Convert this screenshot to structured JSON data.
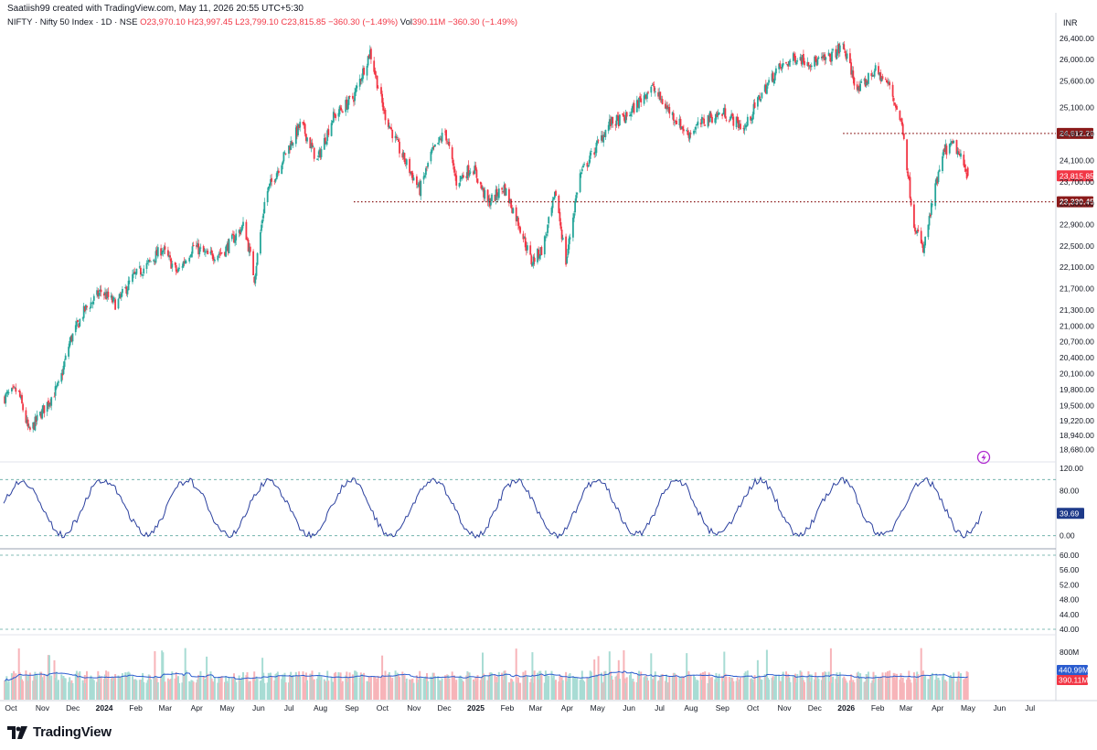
{
  "header": {
    "credit": "Saatiish99 created with TradingView.com, May 11, 2026 20:55 UTC+5:30",
    "symbol": "NIFTY",
    "name": "Nifty 50 Index",
    "interval": "1D",
    "exchange": "NSE",
    "open": "O23,970.10",
    "high": "H23,997.45",
    "low": "L23,799.10",
    "close": "C23,815.85",
    "change": "−360.30 (−1.49%)",
    "volume_label": "Vol",
    "volume": "390.11M",
    "volume_change": "−360.30 (−1.49%)",
    "currency": "INR"
  },
  "brand": {
    "name": "TradingView",
    "icon": "tradingview-logo-icon"
  },
  "lightning_icon": "lightning-icon",
  "colors": {
    "up": "#26a69a",
    "down": "#f23645",
    "osc": "#2a3f9e",
    "level": "#8b1a1a",
    "ma": "#2a5ccf"
  },
  "chart_data": [
    {
      "type": "candlestick",
      "title": "NIFTY · Nifty 50 Index · 1D · NSE",
      "x_range": [
        "2023-10-01",
        "2026-07-31"
      ],
      "ylim": [
        18600,
        26500
      ],
      "y_ticks": [
        "26,400.00",
        "26,000.00",
        "25,600.00",
        "25,100.00",
        "24,600.00",
        "24,100.00",
        "23,700.00",
        "23,300.00",
        "22,900.00",
        "22,500.00",
        "22,100.00",
        "21,700.00",
        "21,300.00",
        "21,000.00",
        "20,700.00",
        "20,400.00",
        "20,100.00",
        "19,800.00",
        "19,500.00",
        "19,220.00",
        "18,940.00",
        "18,680.00"
      ],
      "x_ticks": [
        "Oct",
        "Nov",
        "Dec",
        "2024",
        "Feb",
        "Mar",
        "Apr",
        "May",
        "Jun",
        "Jul",
        "Aug",
        "Sep",
        "Oct",
        "Nov",
        "Dec",
        "2025",
        "Feb",
        "Mar",
        "Apr",
        "May",
        "Jun",
        "Jul",
        "Aug",
        "Sep",
        "Oct",
        "Nov",
        "Dec",
        "2026",
        "Feb",
        "Mar",
        "Apr",
        "May",
        "Jun",
        "Jul"
      ],
      "close_path": [
        [
          "2023-10-01",
          19650
        ],
        [
          "2023-10-15",
          19800
        ],
        [
          "2023-10-26",
          19000
        ],
        [
          "2023-11-10",
          19450
        ],
        [
          "2023-11-25",
          19900
        ],
        [
          "2023-12-05",
          20700
        ],
        [
          "2023-12-20",
          21300
        ],
        [
          "2024-01-05",
          21650
        ],
        [
          "2024-01-20",
          21400
        ],
        [
          "2024-02-05",
          21900
        ],
        [
          "2024-02-20",
          22150
        ],
        [
          "2024-03-05",
          22450
        ],
        [
          "2024-03-20",
          22000
        ],
        [
          "2024-04-05",
          22500
        ],
        [
          "2024-04-20",
          22300
        ],
        [
          "2024-05-05",
          22400
        ],
        [
          "2024-05-25",
          22900
        ],
        [
          "2024-06-04",
          21900
        ],
        [
          "2024-06-15",
          23450
        ],
        [
          "2024-07-01",
          24100
        ],
        [
          "2024-07-20",
          24800
        ],
        [
          "2024-08-05",
          24100
        ],
        [
          "2024-08-20",
          24900
        ],
        [
          "2024-09-10",
          25300
        ],
        [
          "2024-09-26",
          26150
        ],
        [
          "2024-10-10",
          25000
        ],
        [
          "2024-10-25",
          24300
        ],
        [
          "2024-11-14",
          23550
        ],
        [
          "2024-11-25",
          24200
        ],
        [
          "2024-12-09",
          24650
        ],
        [
          "2024-12-20",
          23700
        ],
        [
          "2025-01-05",
          24000
        ],
        [
          "2025-01-20",
          23300
        ],
        [
          "2025-02-05",
          23600
        ],
        [
          "2025-02-20",
          22900
        ],
        [
          "2025-03-04",
          22200
        ],
        [
          "2025-03-15",
          22450
        ],
        [
          "2025-03-28",
          23500
        ],
        [
          "2025-04-07",
          22200
        ],
        [
          "2025-04-20",
          23800
        ],
        [
          "2025-05-05",
          24300
        ],
        [
          "2025-05-20",
          24800
        ],
        [
          "2025-06-05",
          24900
        ],
        [
          "2025-06-30",
          25500
        ],
        [
          "2025-07-15",
          25100
        ],
        [
          "2025-08-05",
          24600
        ],
        [
          "2025-08-25",
          24900
        ],
        [
          "2025-09-10",
          25000
        ],
        [
          "2025-09-30",
          24700
        ],
        [
          "2025-10-15",
          25300
        ],
        [
          "2025-11-01",
          25800
        ],
        [
          "2025-11-20",
          26050
        ],
        [
          "2025-12-05",
          25950
        ],
        [
          "2025-12-20",
          26000
        ],
        [
          "2026-01-05",
          26250
        ],
        [
          "2026-01-20",
          25400
        ],
        [
          "2026-02-05",
          25800
        ],
        [
          "2026-02-20",
          25500
        ],
        [
          "2026-03-05",
          24700
        ],
        [
          "2026-03-15",
          23000
        ],
        [
          "2026-03-25",
          22400
        ],
        [
          "2026-04-05",
          23500
        ],
        [
          "2026-04-15",
          24300
        ],
        [
          "2026-04-25",
          24400
        ],
        [
          "2026-05-08",
          23815.85
        ]
      ],
      "levels": [
        {
          "label": "24,612.20",
          "value": 24612.2,
          "from": "2026-01-05"
        },
        {
          "label": "23,330.45",
          "value": 23330.45,
          "from": "2024-09-10"
        }
      ],
      "last_price": {
        "label": "23,815.85",
        "value": 23815.85
      }
    },
    {
      "type": "line",
      "title": "",
      "ylim": [
        -20,
        120
      ],
      "y_ticks": [
        "120.00",
        "80.00",
        "40.00",
        "0.00"
      ],
      "bands": [
        100,
        0
      ],
      "last_value": {
        "label": "39.69",
        "value": 39.69
      }
    },
    {
      "type": "line",
      "title": "",
      "ylim": [
        39,
        61
      ],
      "y_ticks": [
        "60.00",
        "56.00",
        "52.00",
        "48.00",
        "44.00",
        "40.00"
      ],
      "bands": [
        60,
        40
      ]
    },
    {
      "type": "bar",
      "title": "Volume",
      "y_ticks": [
        "800M"
      ],
      "ma_label": "440.99M",
      "last_label": "390.11M"
    }
  ]
}
